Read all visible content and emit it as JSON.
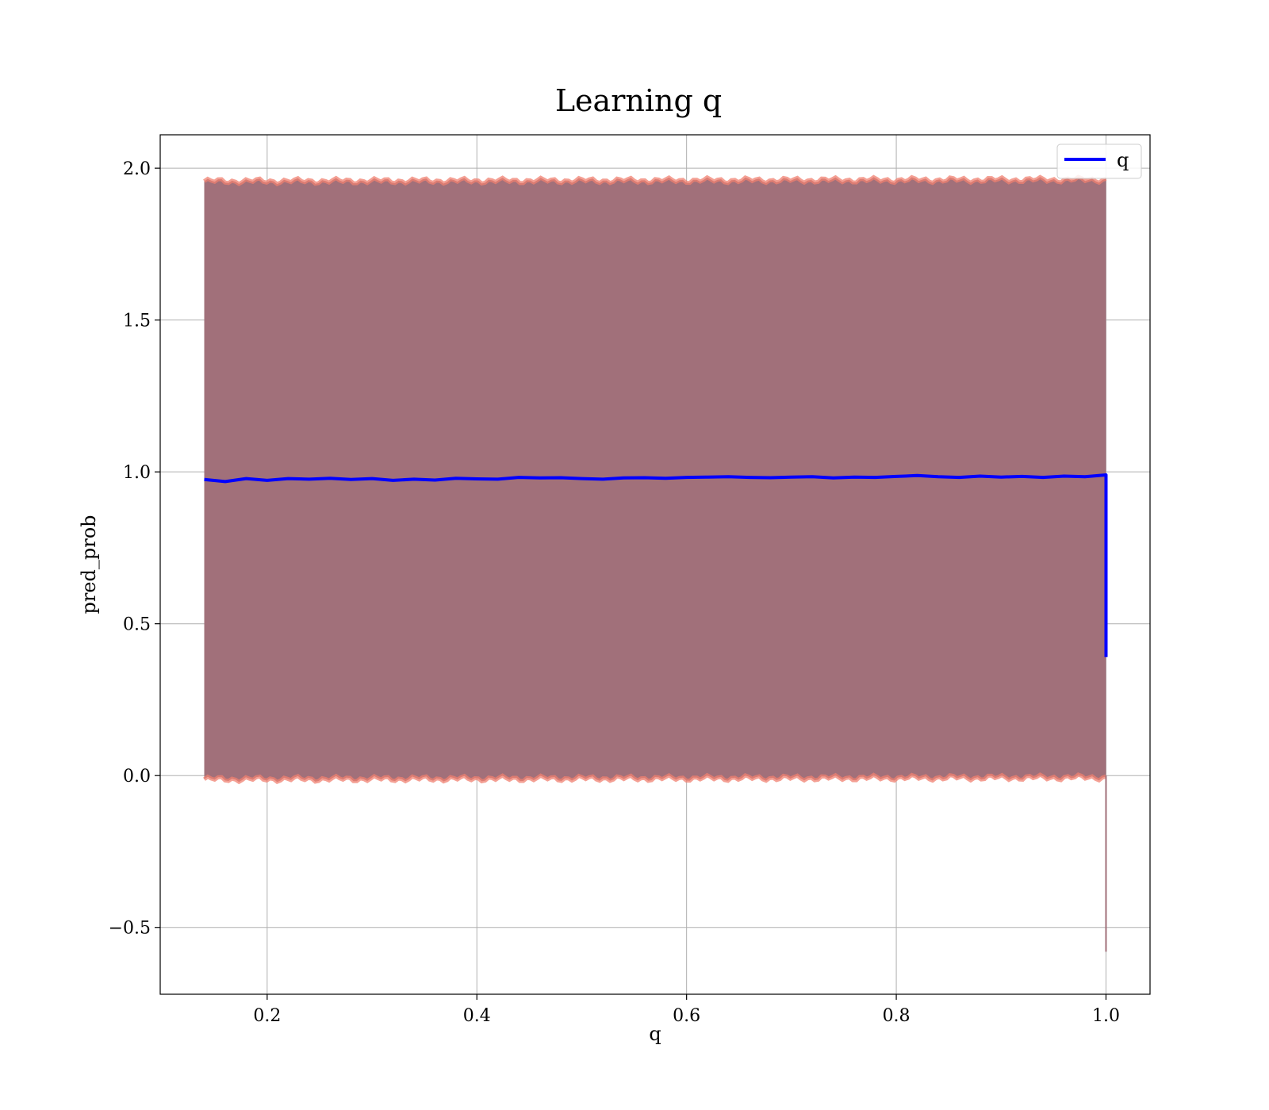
{
  "chart_data": {
    "type": "line",
    "title": "Learning q",
    "xlabel": "q",
    "ylabel": "pred_prob",
    "xlim": [
      0.098,
      1.042
    ],
    "ylim": [
      -0.72,
      2.11
    ],
    "x_ticks": [
      0.2,
      0.4,
      0.6,
      0.8,
      1.0
    ],
    "x_tick_labels": [
      "0.2",
      "0.4",
      "0.6",
      "0.8",
      "1.0"
    ],
    "y_ticks": [
      -0.5,
      0.0,
      0.5,
      1.0,
      1.5,
      2.0
    ],
    "y_tick_labels": [
      "−0.5",
      "0.0",
      "0.5",
      "1.0",
      "1.5",
      "2.0"
    ],
    "grid": true,
    "legend": {
      "position": "top-right",
      "entries": [
        "q"
      ]
    },
    "series": [
      {
        "name": "q",
        "color": "#0000ff",
        "x": [
          0.14,
          0.16,
          0.18,
          0.2,
          0.22,
          0.24,
          0.26,
          0.28,
          0.3,
          0.32,
          0.34,
          0.36,
          0.38,
          0.4,
          0.42,
          0.44,
          0.46,
          0.48,
          0.5,
          0.52,
          0.54,
          0.56,
          0.58,
          0.6,
          0.62,
          0.64,
          0.66,
          0.68,
          0.7,
          0.72,
          0.74,
          0.76,
          0.78,
          0.8,
          0.82,
          0.84,
          0.86,
          0.88,
          0.9,
          0.92,
          0.94,
          0.96,
          0.98,
          1.0,
          1.0
        ],
        "y": [
          0.975,
          0.968,
          0.978,
          0.972,
          0.978,
          0.976,
          0.979,
          0.975,
          0.978,
          0.972,
          0.976,
          0.973,
          0.979,
          0.977,
          0.976,
          0.982,
          0.98,
          0.981,
          0.978,
          0.976,
          0.98,
          0.981,
          0.979,
          0.982,
          0.983,
          0.984,
          0.982,
          0.981,
          0.983,
          0.984,
          0.98,
          0.983,
          0.982,
          0.985,
          0.988,
          0.984,
          0.982,
          0.986,
          0.983,
          0.985,
          0.982,
          0.986,
          0.984,
          0.99,
          0.39
        ]
      }
    ],
    "bands": [
      {
        "color": "#a1707a",
        "edge_color": "#f08070",
        "x": [
          0.14,
          1.0
        ],
        "upper": [
          1.957,
          1.962
        ],
        "lower": [
          -0.012,
          -0.006
        ]
      }
    ],
    "outlier_segment": {
      "x": 1.0,
      "y_from": 0.0,
      "y_to": -0.58
    }
  }
}
